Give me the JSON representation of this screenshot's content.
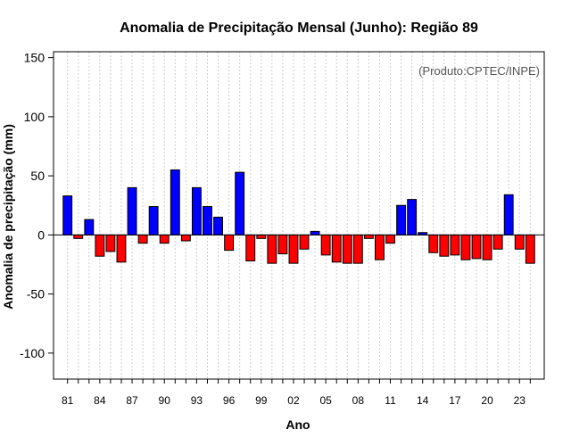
{
  "chart_data": {
    "type": "bar",
    "title": "Anomalia de Precipitação Mensal (Junho): Região 89",
    "xlabel": "Ano",
    "ylabel": "Anomalia de precipitação (mm)",
    "credit": "(Produto:CPTEC/INPE)",
    "ylim": [
      -122,
      155
    ],
    "yticks": [
      150,
      100,
      50,
      0,
      -50,
      -100
    ],
    "xtick_labels": [
      "81",
      "84",
      "87",
      "90",
      "93",
      "96",
      "99",
      "02",
      "05",
      "08",
      "11",
      "14",
      "17",
      "20",
      "23"
    ],
    "positive_color": "#0000ff",
    "negative_color": "#ff0000",
    "years": [
      1981,
      1982,
      1983,
      1984,
      1985,
      1986,
      1987,
      1988,
      1989,
      1990,
      1991,
      1992,
      1993,
      1994,
      1995,
      1996,
      1997,
      1998,
      1999,
      2000,
      2001,
      2002,
      2003,
      2004,
      2005,
      2006,
      2007,
      2008,
      2009,
      2010,
      2011,
      2012,
      2013,
      2014,
      2015,
      2016,
      2017,
      2018,
      2019,
      2020,
      2021,
      2022,
      2023,
      2024
    ],
    "values": [
      33,
      -3,
      13,
      -18,
      -14,
      -23,
      40,
      -7,
      24,
      -7,
      55,
      -5,
      40,
      24,
      15,
      -13,
      53,
      -22,
      -3,
      -24,
      -16,
      -24,
      -12,
      3,
      -17,
      -23,
      -24,
      -24,
      -3,
      -21,
      -7,
      25,
      30,
      2,
      -15,
      -18,
      -17,
      -21,
      -20,
      -21,
      -12,
      34,
      -12,
      -24
    ]
  }
}
